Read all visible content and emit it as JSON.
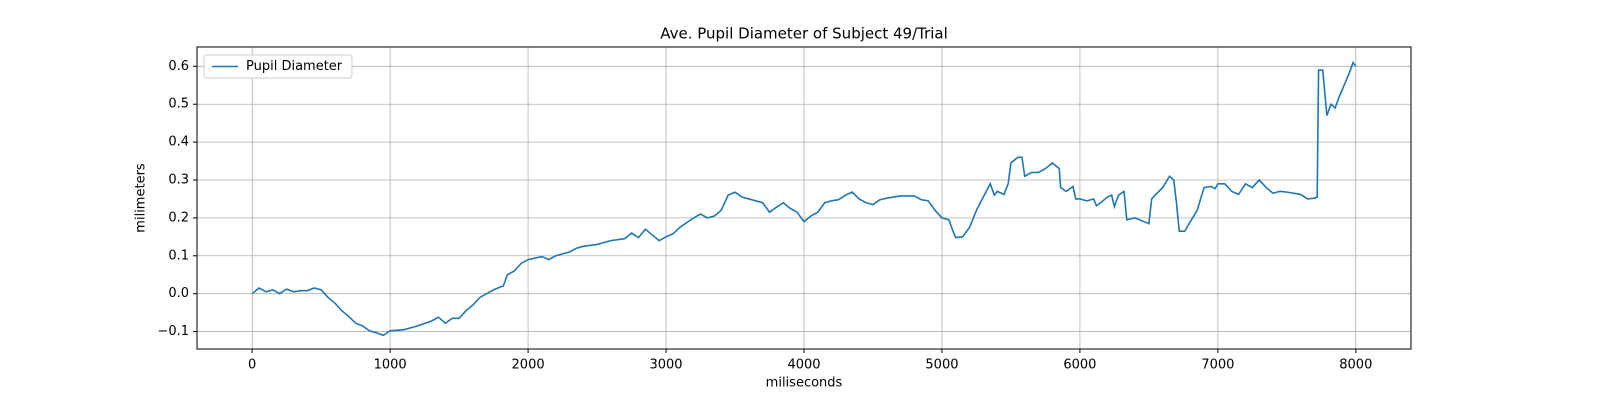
{
  "chart_data": {
    "type": "line",
    "title": "Ave. Pupil Diameter of Subject 49/Trial",
    "x_label": "miliseconds",
    "y_label": "milimeters",
    "x": [
      0,
      50,
      100,
      150,
      200,
      250,
      300,
      350,
      400,
      450,
      500,
      550,
      600,
      650,
      700,
      750,
      800,
      850,
      900,
      950,
      1000,
      1100,
      1200,
      1300,
      1350,
      1400,
      1450,
      1500,
      1550,
      1600,
      1650,
      1700,
      1750,
      1800,
      1820,
      1850,
      1900,
      1950,
      2000,
      2100,
      2150,
      2200,
      2300,
      2350,
      2400,
      2500,
      2600,
      2700,
      2750,
      2800,
      2850,
      2900,
      2950,
      3000,
      3050,
      3100,
      3200,
      3250,
      3300,
      3350,
      3400,
      3450,
      3500,
      3550,
      3600,
      3700,
      3750,
      3800,
      3850,
      3900,
      3950,
      4000,
      4050,
      4100,
      4150,
      4200,
      4250,
      4300,
      4350,
      4400,
      4450,
      4500,
      4550,
      4600,
      4700,
      4800,
      4850,
      4900,
      4950,
      5000,
      5050,
      5080,
      5100,
      5150,
      5200,
      5250,
      5300,
      5350,
      5380,
      5400,
      5450,
      5480,
      5500,
      5550,
      5580,
      5600,
      5650,
      5700,
      5750,
      5800,
      5850,
      5860,
      5900,
      5950,
      5970,
      6000,
      6050,
      6100,
      6120,
      6150,
      6200,
      6230,
      6250,
      6280,
      6320,
      6340,
      6400,
      6450,
      6500,
      6520,
      6550,
      6600,
      6650,
      6680,
      6700,
      6720,
      6760,
      6800,
      6850,
      6900,
      6950,
      6980,
      7000,
      7050,
      7100,
      7150,
      7200,
      7250,
      7300,
      7350,
      7400,
      7450,
      7500,
      7600,
      7650,
      7700,
      7720,
      7730,
      7760,
      7790,
      7820,
      7850,
      7880,
      7950,
      7980,
      8000
    ],
    "series": [
      {
        "name": "Pupil Diameter",
        "color": "#1f77b4",
        "values": [
          0.0,
          0.015,
          0.005,
          0.01,
          0.0,
          0.012,
          0.005,
          0.008,
          0.008,
          0.015,
          0.01,
          -0.01,
          -0.025,
          -0.045,
          -0.06,
          -0.078,
          -0.085,
          -0.098,
          -0.103,
          -0.11,
          -0.098,
          -0.095,
          -0.085,
          -0.072,
          -0.062,
          -0.078,
          -0.065,
          -0.065,
          -0.045,
          -0.03,
          -0.01,
          0.0,
          0.01,
          0.018,
          0.02,
          0.05,
          0.06,
          0.08,
          0.09,
          0.098,
          0.09,
          0.1,
          0.11,
          0.12,
          0.125,
          0.13,
          0.14,
          0.145,
          0.16,
          0.148,
          0.17,
          0.155,
          0.14,
          0.15,
          0.158,
          0.175,
          0.2,
          0.21,
          0.2,
          0.205,
          0.22,
          0.26,
          0.268,
          0.255,
          0.25,
          0.24,
          0.215,
          0.228,
          0.24,
          0.225,
          0.215,
          0.19,
          0.205,
          0.215,
          0.24,
          0.245,
          0.248,
          0.26,
          0.268,
          0.25,
          0.24,
          0.235,
          0.248,
          0.252,
          0.258,
          0.258,
          0.248,
          0.245,
          0.22,
          0.2,
          0.195,
          0.165,
          0.148,
          0.15,
          0.175,
          0.22,
          0.255,
          0.29,
          0.26,
          0.27,
          0.262,
          0.29,
          0.345,
          0.36,
          0.36,
          0.31,
          0.32,
          0.32,
          0.33,
          0.345,
          0.33,
          0.28,
          0.27,
          0.283,
          0.25,
          0.25,
          0.245,
          0.25,
          0.232,
          0.24,
          0.255,
          0.26,
          0.23,
          0.26,
          0.27,
          0.195,
          0.2,
          0.192,
          0.185,
          0.25,
          0.262,
          0.28,
          0.31,
          0.3,
          0.24,
          0.165,
          0.165,
          0.19,
          0.22,
          0.28,
          0.283,
          0.277,
          0.29,
          0.29,
          0.27,
          0.262,
          0.29,
          0.28,
          0.3,
          0.28,
          0.265,
          0.27,
          0.268,
          0.262,
          0.25,
          0.252,
          0.255,
          0.59,
          0.59,
          0.47,
          0.5,
          0.49,
          0.52,
          0.58,
          0.61,
          0.6
        ]
      }
    ],
    "xlim": [
      -400,
      8400
    ],
    "xticks": [
      0,
      1000,
      2000,
      3000,
      4000,
      5000,
      6000,
      7000,
      8000
    ],
    "ylim": [
      -0.146,
      0.651
    ],
    "yticks": [
      {
        "value": -0.1,
        "label": "−0.1"
      },
      {
        "value": 0,
        "label": "0.0"
      },
      0.1,
      0.2,
      0.3,
      0.4,
      0.5,
      0.6
    ],
    "grid": true,
    "legend": "upper left"
  }
}
